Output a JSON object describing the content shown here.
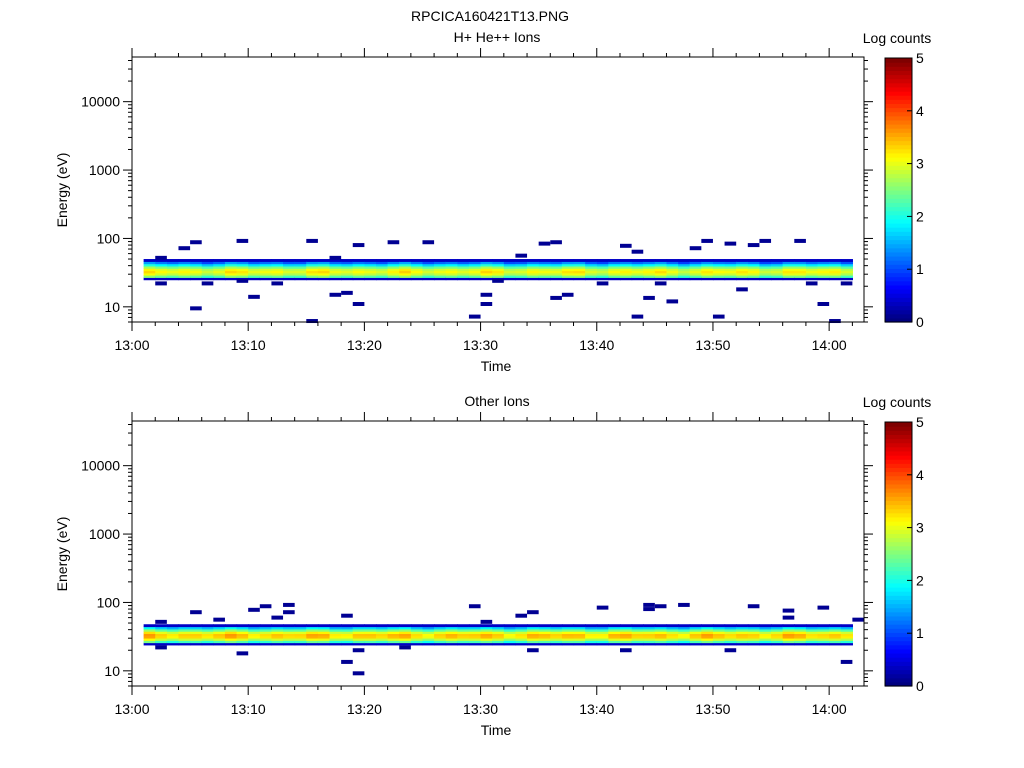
{
  "figure_title": "RPCICA160421T13.PNG",
  "colors": {
    "background": "#ffffff",
    "axes": "#000000",
    "colormap": [
      "#00007f",
      "#0000ff",
      "#007fff",
      "#00ffff",
      "#7fff7f",
      "#ffff00",
      "#ff7f00",
      "#ff0000",
      "#7f0000"
    ]
  },
  "chart_data": [
    {
      "type": "heatmap",
      "title": "H+ He++ Ions",
      "xlabel": "Time",
      "ylabel": "Energy (eV)",
      "yscale": "log",
      "ylim": [
        6,
        45000
      ],
      "xlim": [
        "13:00",
        "14:03"
      ],
      "xticks": [
        "13:00",
        "13:10",
        "13:20",
        "13:30",
        "13:40",
        "13:50",
        "14:00"
      ],
      "yticks": [
        {
          "value": 10,
          "label": "10"
        },
        {
          "value": 100,
          "label": "100"
        },
        {
          "value": 1000,
          "label": "1000"
        },
        {
          "value": 10000,
          "label": "10000"
        }
      ],
      "colorbar": {
        "label": "Log counts",
        "range": [
          0,
          5
        ],
        "ticks": [
          "0",
          "1",
          "2",
          "3",
          "4",
          "5"
        ]
      },
      "main_band": {
        "energy_range": [
          25,
          50
        ],
        "peak_energy": 33,
        "peak_log_counts": 3.1
      },
      "scattered_counts": [
        {
          "t": "13:02",
          "e": 52
        },
        {
          "t": "13:02",
          "e": 22
        },
        {
          "t": "13:04",
          "e": 72
        },
        {
          "t": "13:05",
          "e": 88
        },
        {
          "t": "13:05",
          "e": 9.5
        },
        {
          "t": "13:06",
          "e": 22
        },
        {
          "t": "13:09",
          "e": 92
        },
        {
          "t": "13:09",
          "e": 24
        },
        {
          "t": "13:10",
          "e": 14
        },
        {
          "t": "13:12",
          "e": 22
        },
        {
          "t": "13:15",
          "e": 92
        },
        {
          "t": "13:15",
          "e": 6.2
        },
        {
          "t": "13:17",
          "e": 52
        },
        {
          "t": "13:17",
          "e": 15
        },
        {
          "t": "13:18",
          "e": 16
        },
        {
          "t": "13:19",
          "e": 80
        },
        {
          "t": "13:19",
          "e": 11
        },
        {
          "t": "13:22",
          "e": 88
        },
        {
          "t": "13:25",
          "e": 88
        },
        {
          "t": "13:29",
          "e": 7.2
        },
        {
          "t": "13:30",
          "e": 15
        },
        {
          "t": "13:30",
          "e": 11
        },
        {
          "t": "13:31",
          "e": 24
        },
        {
          "t": "13:33",
          "e": 56
        },
        {
          "t": "13:35",
          "e": 84
        },
        {
          "t": "13:36",
          "e": 88
        },
        {
          "t": "13:36",
          "e": 13.5
        },
        {
          "t": "13:37",
          "e": 15
        },
        {
          "t": "13:40",
          "e": 22
        },
        {
          "t": "13:42",
          "e": 78
        },
        {
          "t": "13:43",
          "e": 64
        },
        {
          "t": "13:43",
          "e": 7.2
        },
        {
          "t": "13:44",
          "e": 13.5
        },
        {
          "t": "13:45",
          "e": 22
        },
        {
          "t": "13:46",
          "e": 12
        },
        {
          "t": "13:48",
          "e": 72
        },
        {
          "t": "13:49",
          "e": 92
        },
        {
          "t": "13:50",
          "e": 7.2
        },
        {
          "t": "13:51",
          "e": 84
        },
        {
          "t": "13:52",
          "e": 18
        },
        {
          "t": "13:53",
          "e": 80
        },
        {
          "t": "13:54",
          "e": 92
        },
        {
          "t": "13:57",
          "e": 92
        },
        {
          "t": "13:58",
          "e": 22
        },
        {
          "t": "13:59",
          "e": 11
        },
        {
          "t": "14:00",
          "e": 6.2
        },
        {
          "t": "14:01",
          "e": 22
        }
      ]
    },
    {
      "type": "heatmap",
      "title": "Other Ions",
      "xlabel": "Time",
      "ylabel": "Energy (eV)",
      "yscale": "log",
      "ylim": [
        6,
        45000
      ],
      "xlim": [
        "13:00",
        "14:03"
      ],
      "xticks": [
        "13:00",
        "13:10",
        "13:20",
        "13:30",
        "13:40",
        "13:50",
        "14:00"
      ],
      "yticks": [
        {
          "value": 10,
          "label": "10"
        },
        {
          "value": 100,
          "label": "100"
        },
        {
          "value": 1000,
          "label": "1000"
        },
        {
          "value": 10000,
          "label": "10000"
        }
      ],
      "colorbar": {
        "label": "Log counts",
        "range": [
          0,
          5
        ],
        "ticks": [
          "0",
          "1",
          "2",
          "3",
          "4",
          "5"
        ]
      },
      "main_band": {
        "energy_range": [
          24,
          48
        ],
        "peak_energy": 33,
        "peak_log_counts": 3.4
      },
      "scattered_counts": [
        {
          "t": "13:02",
          "e": 52
        },
        {
          "t": "13:02",
          "e": 22
        },
        {
          "t": "13:05",
          "e": 72
        },
        {
          "t": "13:07",
          "e": 56
        },
        {
          "t": "13:09",
          "e": 18
        },
        {
          "t": "13:10",
          "e": 78
        },
        {
          "t": "13:11",
          "e": 88
        },
        {
          "t": "13:12",
          "e": 60
        },
        {
          "t": "13:13",
          "e": 92
        },
        {
          "t": "13:13",
          "e": 72
        },
        {
          "t": "13:18",
          "e": 64
        },
        {
          "t": "13:18",
          "e": 13.5
        },
        {
          "t": "13:19",
          "e": 9.2
        },
        {
          "t": "13:19",
          "e": 20
        },
        {
          "t": "13:23",
          "e": 22
        },
        {
          "t": "13:29",
          "e": 88
        },
        {
          "t": "13:30",
          "e": 52
        },
        {
          "t": "13:33",
          "e": 64
        },
        {
          "t": "13:34",
          "e": 72
        },
        {
          "t": "13:34",
          "e": 20
        },
        {
          "t": "13:40",
          "e": 84
        },
        {
          "t": "13:42",
          "e": 20
        },
        {
          "t": "13:44",
          "e": 92
        },
        {
          "t": "13:44",
          "e": 80
        },
        {
          "t": "13:45",
          "e": 88
        },
        {
          "t": "13:47",
          "e": 92
        },
        {
          "t": "13:51",
          "e": 20
        },
        {
          "t": "13:53",
          "e": 88
        },
        {
          "t": "13:56",
          "e": 76
        },
        {
          "t": "13:56",
          "e": 60
        },
        {
          "t": "13:59",
          "e": 84
        },
        {
          "t": "14:01",
          "e": 13.5
        },
        {
          "t": "14:02",
          "e": 56
        }
      ]
    }
  ]
}
